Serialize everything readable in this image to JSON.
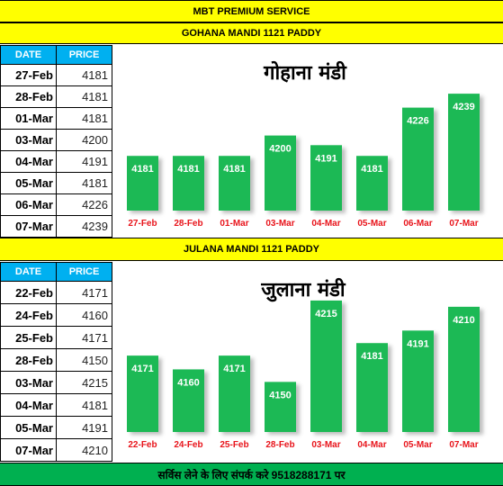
{
  "header": {
    "title": "MBT PREMIUM SERVICE"
  },
  "sections": [
    {
      "title": "GOHANA MANDI 1121 PADDY",
      "table": {
        "col_date": "DATE",
        "col_price": "PRICE",
        "rows": [
          {
            "date": "27-Feb",
            "price": "4181"
          },
          {
            "date": "28-Feb",
            "price": "4181"
          },
          {
            "date": "01-Mar",
            "price": "4181"
          },
          {
            "date": "03-Mar",
            "price": "4200"
          },
          {
            "date": "04-Mar",
            "price": "4191"
          },
          {
            "date": "05-Mar",
            "price": "4181"
          },
          {
            "date": "06-Mar",
            "price": "4226"
          },
          {
            "date": "07-Mar",
            "price": "4239"
          }
        ]
      }
    },
    {
      "title": "JULANA MANDI 1121 PADDY",
      "table": {
        "col_date": "DATE",
        "col_price": "PRICE",
        "rows": [
          {
            "date": "22-Feb",
            "price": "4171"
          },
          {
            "date": "24-Feb",
            "price": "4160"
          },
          {
            "date": "25-Feb",
            "price": "4171"
          },
          {
            "date": "28-Feb",
            "price": "4150"
          },
          {
            "date": "03-Mar",
            "price": "4215"
          },
          {
            "date": "04-Mar",
            "price": "4181"
          },
          {
            "date": "05-Mar",
            "price": "4191"
          },
          {
            "date": "07-Mar",
            "price": "4210"
          }
        ]
      }
    }
  ],
  "footer": {
    "text": "सर्विस लेने के लिए संपर्क करे 9518288171 पर"
  },
  "colors": {
    "bar": "#1db954",
    "label": "#e8141b",
    "header_blue": "#00b0f0",
    "yellow": "#ffff00",
    "footer_green": "#00b050"
  },
  "chart_data": [
    {
      "type": "bar",
      "title": "गोहाना मंडी",
      "categories": [
        "27-Feb",
        "28-Feb",
        "01-Mar",
        "03-Mar",
        "04-Mar",
        "05-Mar",
        "06-Mar",
        "07-Mar"
      ],
      "values": [
        4181,
        4181,
        4181,
        4200,
        4191,
        4181,
        4226,
        4239
      ],
      "data_labels": true,
      "grid": false,
      "ylim": [
        4130,
        4250
      ]
    },
    {
      "type": "bar",
      "title": "जुलाना मंडी",
      "categories": [
        "22-Feb",
        "24-Feb",
        "25-Feb",
        "28-Feb",
        "03-Mar",
        "04-Mar",
        "05-Mar",
        "07-Mar"
      ],
      "values": [
        4171,
        4160,
        4171,
        4150,
        4215,
        4181,
        4191,
        4210
      ],
      "data_labels": true,
      "grid": false,
      "ylim": [
        4110,
        4225
      ]
    }
  ]
}
